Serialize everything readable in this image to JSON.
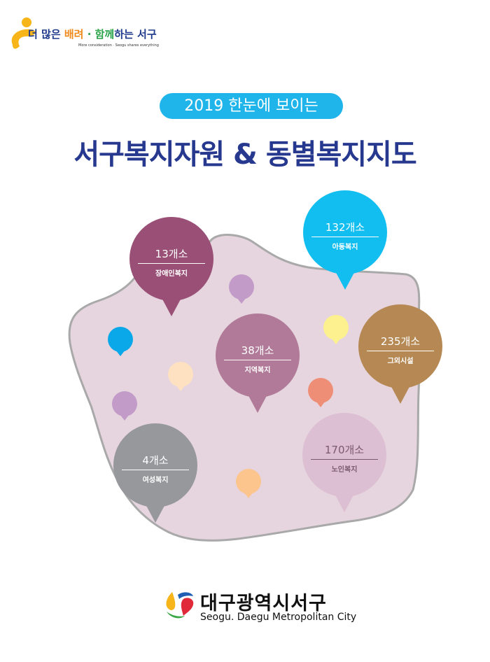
{
  "header": {
    "slogan_parts": [
      "더 많은 ",
      "배려",
      " · 함께",
      "하는 서구"
    ],
    "slogan_en": "More consideration · Seogu shares everything"
  },
  "title": {
    "pill": "2019 한눈에 보이는",
    "main": "서구복지자원 & 동별복지지도"
  },
  "bubbles": [
    {
      "count": "13개소",
      "label": "장애인복지",
      "color": "#9a4f76"
    },
    {
      "count": "132개소",
      "label": "아동복지",
      "color": "#12bef0"
    },
    {
      "count": "38개소",
      "label": "지역복지",
      "color": "#b07a98"
    },
    {
      "count": "235개소",
      "label": "그외시설",
      "color": "#b68954"
    },
    {
      "count": "4개소",
      "label": "여성복지",
      "color": "#97989c"
    },
    {
      "count": "170개소",
      "label": "노인복지",
      "color": "#dcbfd2"
    }
  ],
  "map": {
    "fill": "#e6d5de",
    "stroke": "#a9a9a9"
  },
  "footer": {
    "org_ko": "대구광역시서구",
    "org_en": "Seogu. Daegu Metropolitan City"
  }
}
